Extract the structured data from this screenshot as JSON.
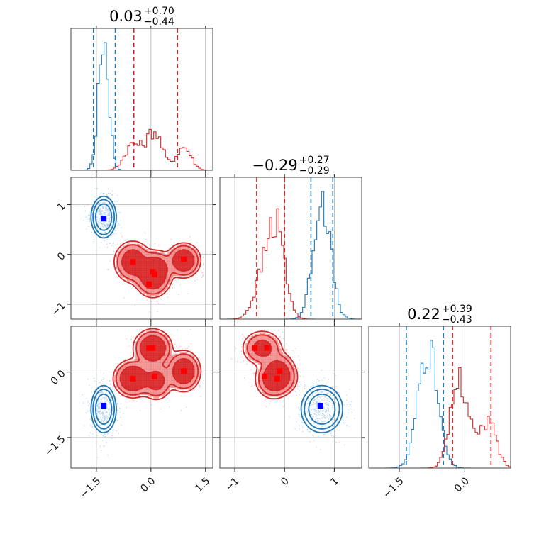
{
  "chart_data": {
    "type": "corner",
    "parameters": [
      {
        "title": {
          "median": "0.03",
          "plus": "+0.70",
          "minus": "−0.44"
        },
        "range": [
          -2.2,
          1.7
        ],
        "ticks": [
          {
            "value": -1.5,
            "label": "−1.5"
          },
          {
            "value": 0.0,
            "label": "0.0"
          },
          {
            "value": 1.5,
            "label": "1.5"
          }
        ]
      },
      {
        "title": {
          "median": "−0.29",
          "plus": "+0.27",
          "minus": "−0.29"
        },
        "range": [
          -1.3,
          1.55
        ],
        "ticks": [
          {
            "value": -1,
            "label": "−1"
          },
          {
            "value": 0,
            "label": "0"
          },
          {
            "value": 1,
            "label": "1"
          }
        ]
      },
      {
        "title": {
          "median": "0.22",
          "plus": "+0.39",
          "minus": "−0.43"
        },
        "range": [
          -2.2,
          1.05
        ],
        "ticks": [
          {
            "value": -1.5,
            "label": "−1.5"
          },
          {
            "value": 0.0,
            "label": "0.0"
          }
        ]
      }
    ],
    "series": [
      {
        "color": "#1f77b4",
        "marker_color": "#0000ff",
        "components": [
          {
            "weight": 1.0,
            "mean": [
              -1.3,
              0.75,
              -0.85
            ],
            "sd": [
              0.14,
              0.17,
              0.22
            ]
          }
        ],
        "quantiles": [
          [
            -1.58,
            -0.98
          ],
          [
            0.53,
            0.97
          ],
          [
            -1.34,
            -0.49
          ]
        ],
        "markers": [
          {
            "x0": -1.3,
            "x1": 0.72,
            "x2": -0.77
          }
        ]
      },
      {
        "color": "#d62728",
        "marker_color": "#ff0000",
        "components": [
          {
            "weight": 0.3,
            "mean": [
              -0.5,
              -0.15,
              -0.15
            ],
            "sd": [
              0.22,
              0.18,
              0.18
            ]
          },
          {
            "weight": 0.3,
            "mean": [
              0.05,
              -0.45,
              0.55
            ],
            "sd": [
              0.22,
              0.18,
              0.18
            ]
          },
          {
            "weight": 0.25,
            "mean": [
              0.9,
              -0.12,
              0.02
            ],
            "sd": [
              0.2,
              0.15,
              0.2
            ]
          },
          {
            "weight": 0.15,
            "mean": [
              0.15,
              -0.25,
              -0.2
            ],
            "sd": [
              0.2,
              0.15,
              0.2
            ]
          }
        ],
        "quantiles": [
          [
            -0.47,
            0.73
          ],
          [
            -0.56,
            0.0
          ],
          [
            -0.28,
            0.6
          ]
        ],
        "markers": [
          {
            "x0": -0.5,
            "x1": -0.15,
            "x2": -0.15
          },
          {
            "x0": 0.05,
            "x1": -0.35,
            "x2": 0.55
          },
          {
            "x0": 0.9,
            "x1": -0.1,
            "x2": 0.02
          },
          {
            "x0": -0.05,
            "x1": -0.6,
            "x2": 0.55
          },
          {
            "x0": 0.1,
            "x1": -0.4,
            "x2": -0.1
          }
        ]
      }
    ],
    "grid": true
  }
}
